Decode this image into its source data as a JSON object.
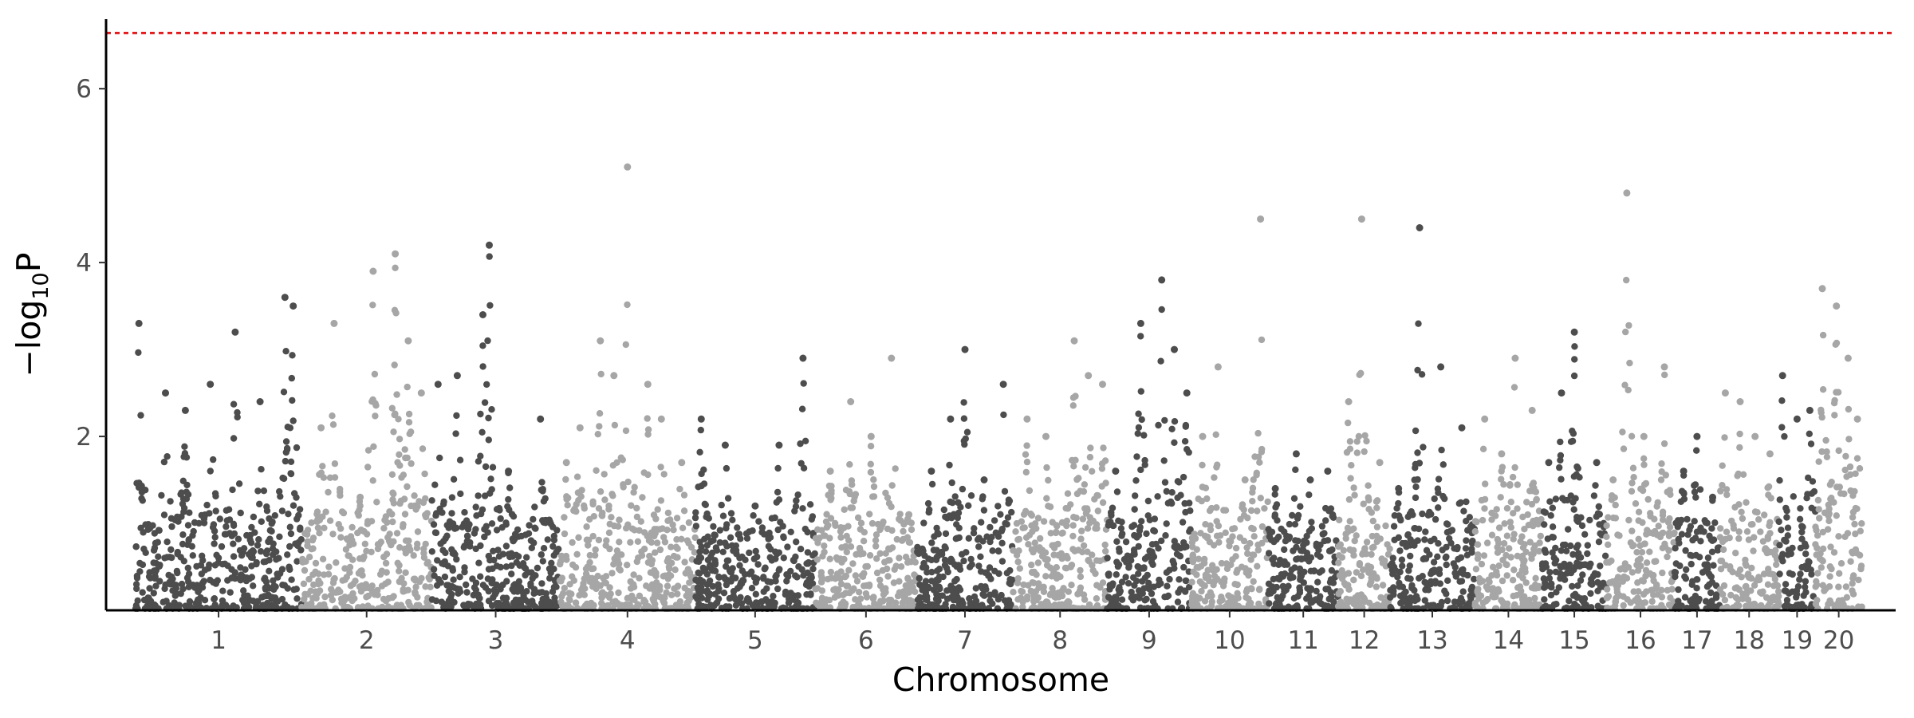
{
  "chart_data": {
    "type": "scatter",
    "subtype": "manhattan",
    "title": "",
    "xlabel": "Chromosome",
    "ylabel": {
      "prefix": "−log",
      "subscript": "10",
      "suffix": "P"
    },
    "ylim": [
      0,
      6.8
    ],
    "yticks": [
      2,
      4,
      6
    ],
    "threshold": {
      "value": 6.64,
      "color": "#e41a1c",
      "style": "dotted"
    },
    "grid": false,
    "legend": "none",
    "colors": {
      "odd_chromosome": "#4d4d4d",
      "even_chromosome": "#a6a6a6",
      "axis": "#000000"
    },
    "chromosomes": [
      {
        "label": "1",
        "length": 301,
        "peaks": [
          [
            0.02,
            3.3
          ],
          [
            0.18,
            2.5
          ],
          [
            0.3,
            2.3
          ],
          [
            0.45,
            2.6
          ],
          [
            0.6,
            3.2
          ],
          [
            0.75,
            2.4
          ],
          [
            0.9,
            3.6
          ],
          [
            0.95,
            3.5
          ]
        ]
      },
      {
        "label": "2",
        "length": 236,
        "peaks": [
          [
            0.15,
            2.1
          ],
          [
            0.25,
            3.3
          ],
          [
            0.45,
            1.3
          ],
          [
            0.55,
            3.9
          ],
          [
            0.72,
            4.1
          ],
          [
            0.82,
            3.1
          ],
          [
            0.92,
            2.5
          ]
        ]
      },
      {
        "label": "3",
        "length": 232,
        "peaks": [
          [
            0.05,
            2.6
          ],
          [
            0.2,
            2.7
          ],
          [
            0.4,
            3.4
          ],
          [
            0.45,
            4.2
          ],
          [
            0.6,
            1.6
          ],
          [
            0.85,
            2.2
          ]
        ]
      },
      {
        "label": "4",
        "length": 246,
        "peaks": [
          [
            0.05,
            1.7
          ],
          [
            0.15,
            2.1
          ],
          [
            0.3,
            3.1
          ],
          [
            0.4,
            2.7
          ],
          [
            0.5,
            5.1
          ],
          [
            0.65,
            2.6
          ],
          [
            0.75,
            2.2
          ],
          [
            0.9,
            1.7
          ]
        ]
      },
      {
        "label": "5",
        "length": 217,
        "peaks": [
          [
            0.05,
            2.2
          ],
          [
            0.25,
            1.9
          ],
          [
            0.5,
            1.2
          ],
          [
            0.7,
            1.9
          ],
          [
            0.9,
            2.9
          ]
        ]
      },
      {
        "label": "6",
        "length": 185,
        "peaks": [
          [
            0.15,
            1.6
          ],
          [
            0.35,
            2.4
          ],
          [
            0.55,
            2.0
          ],
          [
            0.75,
            2.9
          ],
          [
            0.92,
            1.1
          ]
        ]
      },
      {
        "label": "7",
        "length": 174,
        "peaks": [
          [
            0.15,
            1.6
          ],
          [
            0.35,
            2.2
          ],
          [
            0.5,
            3.0
          ],
          [
            0.7,
            1.5
          ],
          [
            0.9,
            2.6
          ]
        ]
      },
      {
        "label": "8",
        "length": 171,
        "peaks": [
          [
            0.15,
            2.2
          ],
          [
            0.35,
            2.0
          ],
          [
            0.65,
            3.1
          ],
          [
            0.8,
            2.7
          ],
          [
            0.95,
            2.6
          ]
        ]
      },
      {
        "label": "9",
        "length": 152,
        "peaks": [
          [
            0.1,
            1.6
          ],
          [
            0.4,
            3.3
          ],
          [
            0.65,
            3.8
          ],
          [
            0.8,
            3.0
          ],
          [
            0.95,
            2.5
          ]
        ]
      },
      {
        "label": "10",
        "length": 140,
        "peaks": [
          [
            0.15,
            2.0
          ],
          [
            0.35,
            2.8
          ],
          [
            0.7,
            1.5
          ],
          [
            0.9,
            4.5
          ]
        ]
      },
      {
        "label": "11",
        "length": 127,
        "peaks": [
          [
            0.1,
            1.4
          ],
          [
            0.4,
            1.8
          ],
          [
            0.6,
            1.5
          ],
          [
            0.85,
            1.6
          ]
        ]
      },
      {
        "label": "12",
        "length": 94,
        "peaks": [
          [
            0.2,
            2.4
          ],
          [
            0.45,
            4.5
          ],
          [
            0.8,
            1.7
          ]
        ]
      },
      {
        "label": "13",
        "length": 153,
        "peaks": [
          [
            0.1,
            1.4
          ],
          [
            0.35,
            4.4
          ],
          [
            0.6,
            2.8
          ],
          [
            0.85,
            2.1
          ]
        ]
      },
      {
        "label": "14",
        "length": 123,
        "peaks": [
          [
            0.15,
            2.2
          ],
          [
            0.4,
            1.8
          ],
          [
            0.6,
            2.9
          ],
          [
            0.85,
            2.3
          ]
        ]
      },
      {
        "label": "15",
        "length": 116,
        "peaks": [
          [
            0.1,
            1.7
          ],
          [
            0.3,
            2.5
          ],
          [
            0.5,
            3.2
          ],
          [
            0.85,
            1.7
          ]
        ]
      },
      {
        "label": "16",
        "length": 124,
        "peaks": [
          [
            0.1,
            1.5
          ],
          [
            0.3,
            4.8
          ],
          [
            0.55,
            2.0
          ],
          [
            0.85,
            2.8
          ]
        ]
      },
      {
        "label": "17",
        "length": 81,
        "peaks": [
          [
            0.2,
            1.6
          ],
          [
            0.5,
            2.0
          ],
          [
            0.85,
            1.3
          ]
        ]
      },
      {
        "label": "18",
        "length": 108,
        "peaks": [
          [
            0.1,
            2.5
          ],
          [
            0.35,
            2.4
          ],
          [
            0.6,
            2.0
          ],
          [
            0.85,
            1.8
          ]
        ]
      },
      {
        "label": "19",
        "length": 66,
        "peaks": [
          [
            0.1,
            2.7
          ],
          [
            0.5,
            2.2
          ],
          [
            0.85,
            2.3
          ]
        ]
      },
      {
        "label": "20",
        "length": 85,
        "peaks": [
          [
            0.15,
            3.7
          ],
          [
            0.45,
            3.5
          ],
          [
            0.7,
            2.9
          ],
          [
            0.9,
            2.2
          ]
        ]
      }
    ]
  }
}
